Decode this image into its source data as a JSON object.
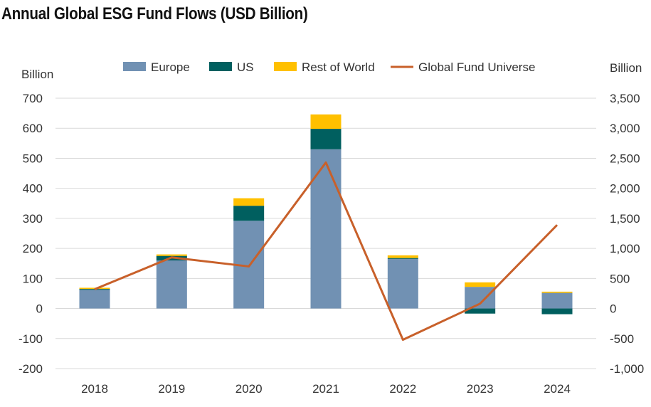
{
  "title": "Annual Global ESG Fund Flows (USD Billion)",
  "colors": {
    "europe": "#7191b3",
    "us": "#005f5f",
    "rest_of_world": "#ffc000",
    "global_line": "#c8602a",
    "grid": "#d9d9d9",
    "text": "#333333"
  },
  "chart_data": {
    "type": "bar",
    "stacked": true,
    "title": "Annual Global ESG Fund Flows (USD Billion)",
    "categories": [
      "2018",
      "2019",
      "2020",
      "2021",
      "2022",
      "2023",
      "2024"
    ],
    "series": [
      {
        "name": "Europe",
        "axis": "left",
        "values": [
          62,
          160,
          292,
          530,
          165,
          72,
          52
        ]
      },
      {
        "name": "US",
        "axis": "left",
        "values": [
          3,
          15,
          50,
          68,
          3,
          -17,
          -19
        ]
      },
      {
        "name": "Rest of World",
        "axis": "left",
        "values": [
          4,
          5,
          25,
          48,
          9,
          15,
          4
        ]
      },
      {
        "name": "Global Fund Universe",
        "type": "line",
        "axis": "right",
        "values": [
          320,
          850,
          700,
          2430,
          -520,
          80,
          1390
        ]
      }
    ],
    "y_left": {
      "label": "Billion",
      "lim": [
        -200,
        700
      ],
      "ticks": [
        "700",
        "600",
        "500",
        "400",
        "300",
        "200",
        "100",
        "0",
        "-100",
        "-200"
      ]
    },
    "y_right": {
      "label": "Billion",
      "lim": [
        -1000,
        3500
      ],
      "ticks": [
        "3,500",
        "3,000",
        "2,500",
        "2,000",
        "1,500",
        "1,000",
        "500",
        "0",
        "-500",
        "-1,000"
      ]
    },
    "grid": true,
    "legend_position": "top"
  }
}
